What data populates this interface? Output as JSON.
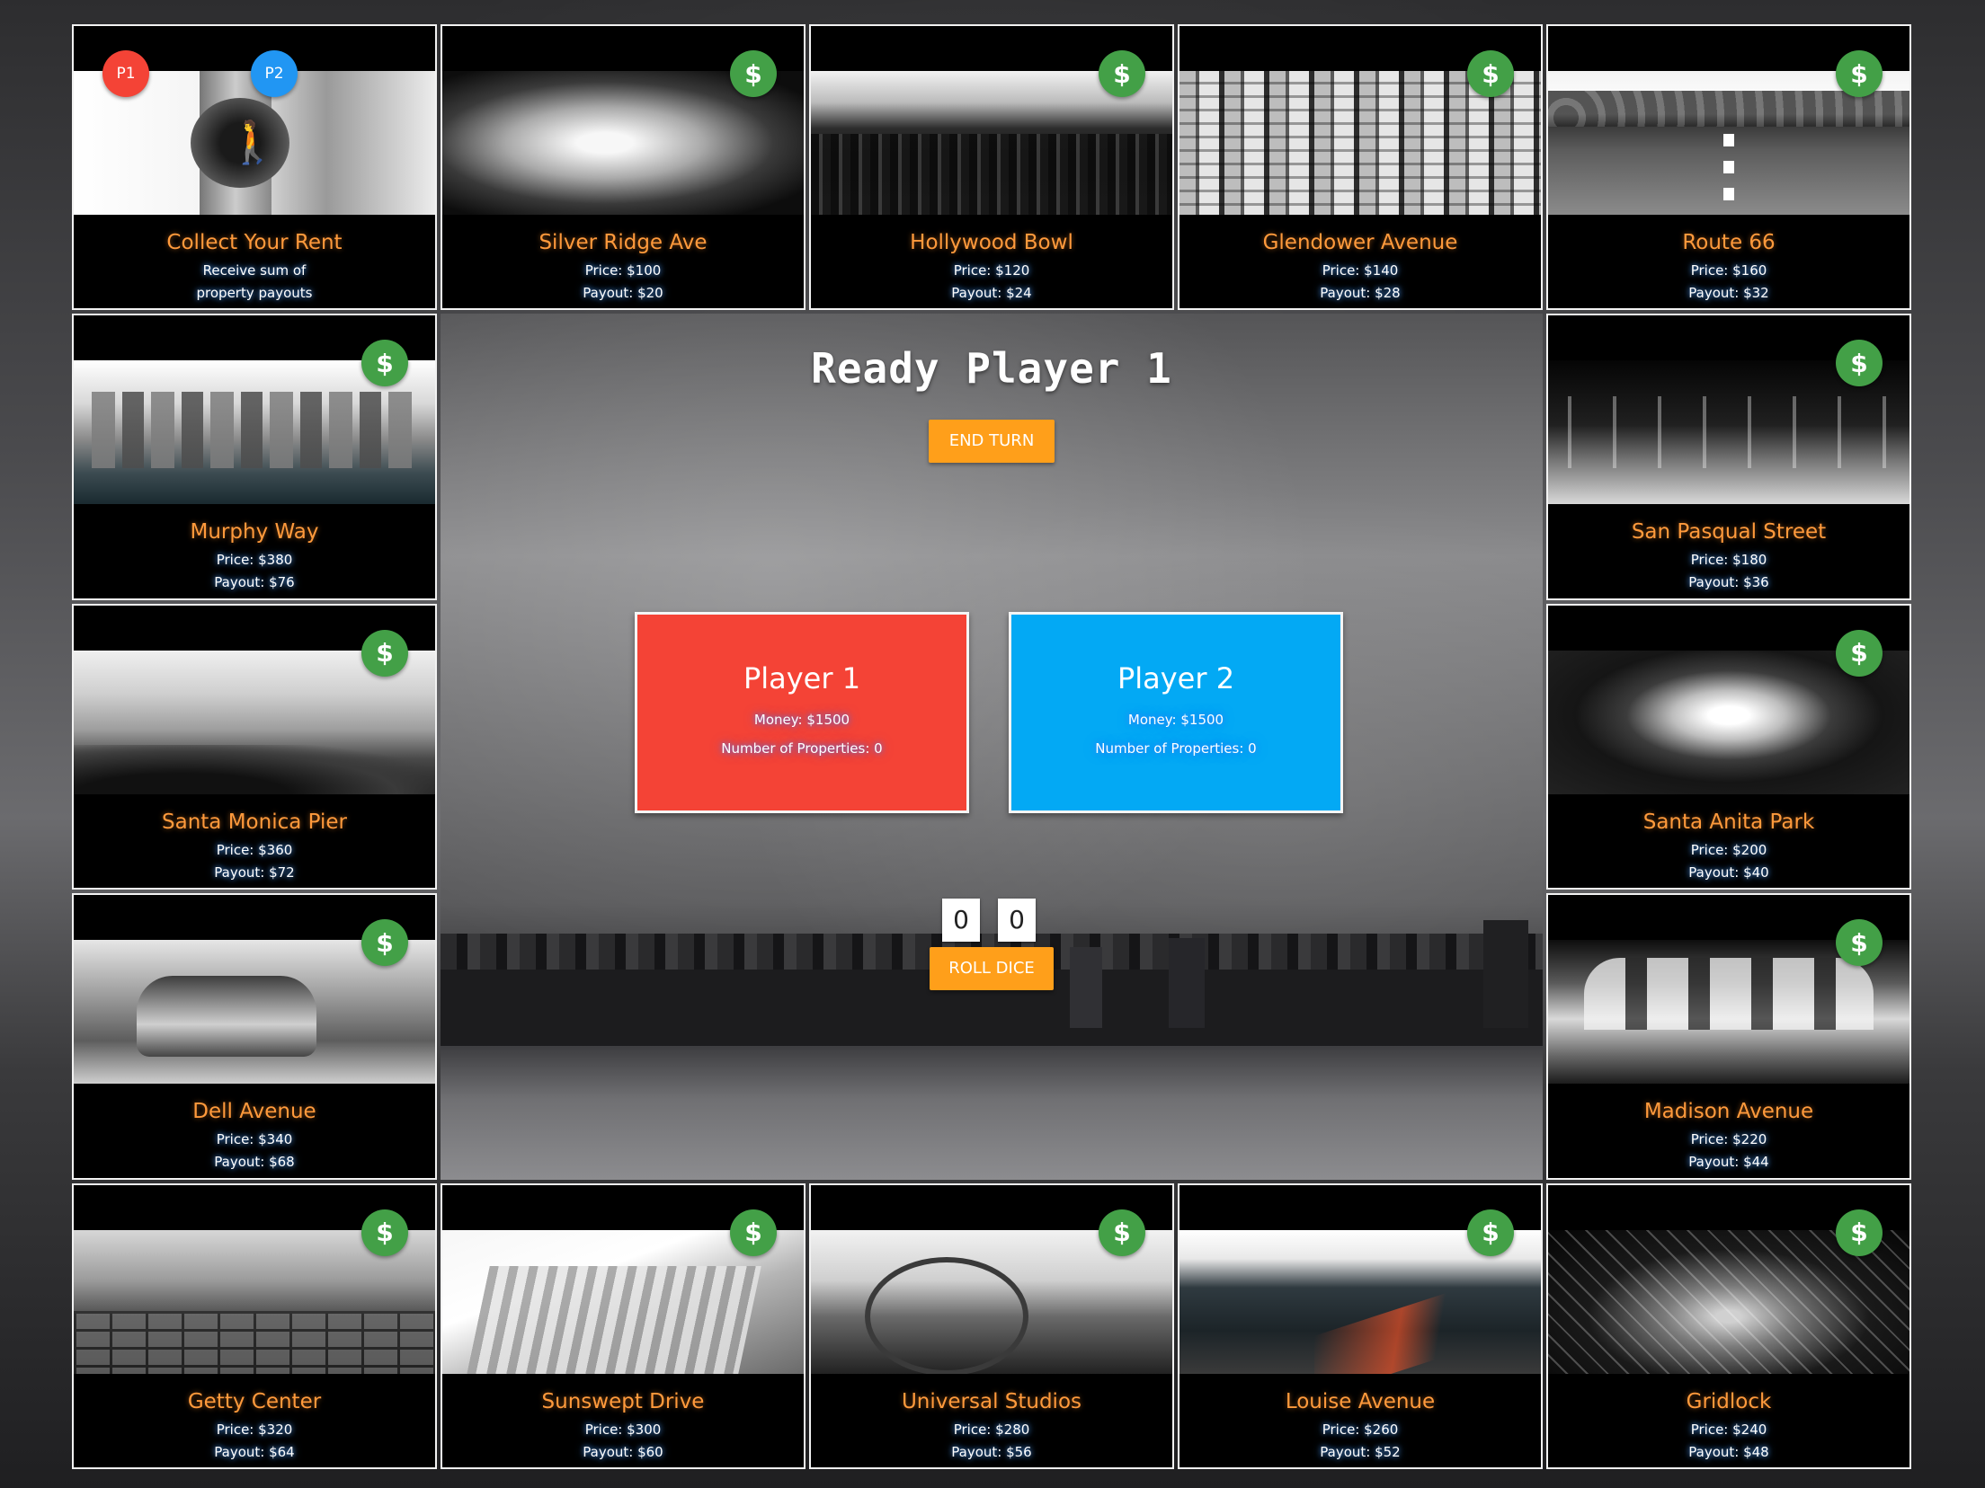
{
  "game": {
    "status_title": "Ready Player 1",
    "end_turn_label": "END TURN",
    "roll_dice_label": "ROLL DICE",
    "dice": [
      "0",
      "0"
    ],
    "buy_icon_glyph": "$"
  },
  "tokens": {
    "p1": "P1",
    "p2": "P2"
  },
  "players": [
    {
      "name": "Player 1",
      "money": "Money: $1500",
      "properties": "Number of Properties: 0",
      "color": "#f44336"
    },
    {
      "name": "Player 2",
      "money": "Money: $1500",
      "properties": "Number of Properties: 0",
      "color": "#03a9f4"
    }
  ],
  "tiles": [
    {
      "name": "Collect Your Rent",
      "line1": "Receive sum of",
      "line2": "property payouts"
    },
    {
      "name": "Silver Ridge Ave",
      "line1": "Price: $100",
      "line2": "Payout: $20"
    },
    {
      "name": "Hollywood Bowl",
      "line1": "Price: $120",
      "line2": "Payout: $24"
    },
    {
      "name": "Glendower Avenue",
      "line1": "Price: $140",
      "line2": "Payout: $28"
    },
    {
      "name": "Route 66",
      "line1": "Price: $160",
      "line2": "Payout: $32"
    },
    {
      "name": "San Pasqual Street",
      "line1": "Price: $180",
      "line2": "Payout: $36"
    },
    {
      "name": "Santa Anita Park",
      "line1": "Price: $200",
      "line2": "Payout: $40"
    },
    {
      "name": "Madison Avenue",
      "line1": "Price: $220",
      "line2": "Payout: $44"
    },
    {
      "name": "Gridlock",
      "line1": "Price: $240",
      "line2": "Payout: $48"
    },
    {
      "name": "Louise Avenue",
      "line1": "Price: $260",
      "line2": "Payout: $52"
    },
    {
      "name": "Universal Studios",
      "line1": "Price: $280",
      "line2": "Payout: $56"
    },
    {
      "name": "Sunswept Drive",
      "line1": "Price: $300",
      "line2": "Payout: $60"
    },
    {
      "name": "Getty Center",
      "line1": "Price: $320",
      "line2": "Payout: $64"
    },
    {
      "name": "Dell Avenue",
      "line1": "Price: $340",
      "line2": "Payout: $68"
    },
    {
      "name": "Santa Monica Pier",
      "line1": "Price: $360",
      "line2": "Payout: $72"
    },
    {
      "name": "Murphy Way",
      "line1": "Price: $380",
      "line2": "Payout: $76"
    }
  ],
  "colors": {
    "accent": "#ff9f1a",
    "buy": "#43a047",
    "tile_name": "#ff9a3c"
  }
}
